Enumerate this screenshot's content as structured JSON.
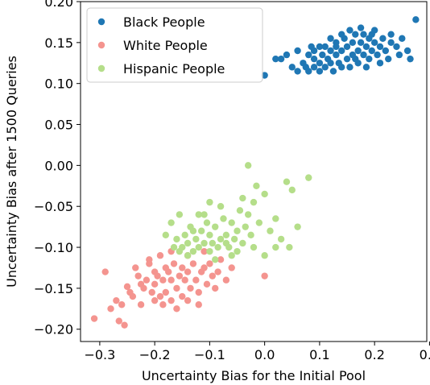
{
  "chart_data": {
    "type": "scatter",
    "xlabel": "Uncertainty Bias for the Initial Pool",
    "ylabel": "Uncertainty Bias after 1500 Queries",
    "xlim": [
      -0.335,
      0.295
    ],
    "ylim": [
      -0.215,
      0.2
    ],
    "xticks": [
      -0.3,
      -0.2,
      -0.1,
      0.0,
      0.1,
      0.2,
      0.3
    ],
    "xtick_labels": [
      "−0.3",
      "−0.2",
      "−0.1",
      "0.0",
      "0.1",
      "0.2",
      "0.3"
    ],
    "yticks": [
      -0.2,
      -0.15,
      -0.1,
      -0.05,
      0.0,
      0.05,
      0.1,
      0.15,
      0.2
    ],
    "ytick_labels": [
      "−0.20",
      "−0.15",
      "−0.10",
      "−0.05",
      "0.00",
      "0.05",
      "0.10",
      "0.15",
      "0.20"
    ],
    "grid": false,
    "legend_position": "top-left",
    "series": [
      {
        "name": "Black People",
        "color": "#1f77b4",
        "points": [
          [
            0.0,
            0.11
          ],
          [
            0.02,
            0.13
          ],
          [
            0.03,
            0.13
          ],
          [
            0.04,
            0.135
          ],
          [
            0.05,
            0.12
          ],
          [
            0.06,
            0.115
          ],
          [
            0.06,
            0.14
          ],
          [
            0.07,
            0.125
          ],
          [
            0.075,
            0.12
          ],
          [
            0.08,
            0.115
          ],
          [
            0.08,
            0.135
          ],
          [
            0.085,
            0.145
          ],
          [
            0.09,
            0.12
          ],
          [
            0.09,
            0.13
          ],
          [
            0.1,
            0.125
          ],
          [
            0.1,
            0.115
          ],
          [
            0.105,
            0.135
          ],
          [
            0.11,
            0.145
          ],
          [
            0.11,
            0.12
          ],
          [
            0.115,
            0.13
          ],
          [
            0.12,
            0.14
          ],
          [
            0.12,
            0.125
          ],
          [
            0.125,
            0.115
          ],
          [
            0.13,
            0.15
          ],
          [
            0.13,
            0.135
          ],
          [
            0.135,
            0.125
          ],
          [
            0.14,
            0.14
          ],
          [
            0.14,
            0.12
          ],
          [
            0.145,
            0.155
          ],
          [
            0.15,
            0.13
          ],
          [
            0.15,
            0.145
          ],
          [
            0.155,
            0.12
          ],
          [
            0.16,
            0.15
          ],
          [
            0.16,
            0.135
          ],
          [
            0.165,
            0.16
          ],
          [
            0.17,
            0.14
          ],
          [
            0.17,
            0.125
          ],
          [
            0.175,
            0.15
          ],
          [
            0.18,
            0.135
          ],
          [
            0.18,
            0.16
          ],
          [
            0.185,
            0.145
          ],
          [
            0.19,
            0.155
          ],
          [
            0.19,
            0.13
          ],
          [
            0.195,
            0.14
          ],
          [
            0.2,
            0.15
          ],
          [
            0.2,
            0.165
          ],
          [
            0.205,
            0.135
          ],
          [
            0.21,
            0.145
          ],
          [
            0.215,
            0.155
          ],
          [
            0.22,
            0.14
          ],
          [
            0.225,
            0.13
          ],
          [
            0.23,
            0.15
          ],
          [
            0.24,
            0.145
          ],
          [
            0.25,
            0.155
          ],
          [
            0.26,
            0.14
          ],
          [
            0.265,
            0.13
          ],
          [
            0.275,
            0.178
          ],
          [
            0.14,
            0.16
          ],
          [
            0.155,
            0.165
          ],
          [
            0.175,
            0.168
          ],
          [
            0.12,
            0.155
          ],
          [
            0.1,
            0.145
          ],
          [
            0.185,
            0.12
          ],
          [
            0.21,
            0.125
          ],
          [
            0.23,
            0.16
          ],
          [
            0.09,
            0.14
          ],
          [
            0.13,
            0.145
          ],
          [
            0.165,
            0.13
          ],
          [
            0.195,
            0.16
          ],
          [
            0.245,
            0.135
          ]
        ]
      },
      {
        "name": "White People",
        "color": "#f4948f",
        "points": [
          [
            -0.31,
            -0.187
          ],
          [
            -0.29,
            -0.13
          ],
          [
            -0.28,
            -0.175
          ],
          [
            -0.27,
            -0.165
          ],
          [
            -0.265,
            -0.19
          ],
          [
            -0.26,
            -0.17
          ],
          [
            -0.255,
            -0.195
          ],
          [
            -0.25,
            -0.148
          ],
          [
            -0.245,
            -0.155
          ],
          [
            -0.24,
            -0.16
          ],
          [
            -0.235,
            -0.125
          ],
          [
            -0.23,
            -0.135
          ],
          [
            -0.225,
            -0.145
          ],
          [
            -0.22,
            -0.15
          ],
          [
            -0.215,
            -0.14
          ],
          [
            -0.21,
            -0.12
          ],
          [
            -0.205,
            -0.155
          ],
          [
            -0.2,
            -0.13
          ],
          [
            -0.2,
            -0.145
          ],
          [
            -0.195,
            -0.135
          ],
          [
            -0.19,
            -0.11
          ],
          [
            -0.19,
            -0.16
          ],
          [
            -0.185,
            -0.14
          ],
          [
            -0.18,
            -0.125
          ],
          [
            -0.18,
            -0.155
          ],
          [
            -0.175,
            -0.13
          ],
          [
            -0.17,
            -0.165
          ],
          [
            -0.17,
            -0.14
          ],
          [
            -0.165,
            -0.12
          ],
          [
            -0.16,
            -0.15
          ],
          [
            -0.155,
            -0.135
          ],
          [
            -0.15,
            -0.125
          ],
          [
            -0.15,
            -0.16
          ],
          [
            -0.145,
            -0.14
          ],
          [
            -0.14,
            -0.13
          ],
          [
            -0.135,
            -0.15
          ],
          [
            -0.13,
            -0.12
          ],
          [
            -0.125,
            -0.14
          ],
          [
            -0.12,
            -0.155
          ],
          [
            -0.115,
            -0.13
          ],
          [
            -0.11,
            -0.125
          ],
          [
            -0.105,
            -0.145
          ],
          [
            -0.1,
            -0.12
          ],
          [
            -0.095,
            -0.135
          ],
          [
            -0.09,
            -0.15
          ],
          [
            -0.085,
            -0.13
          ],
          [
            -0.08,
            -0.115
          ],
          [
            -0.07,
            -0.14
          ],
          [
            -0.06,
            -0.125
          ],
          [
            0.0,
            -0.135
          ],
          [
            -0.2,
            -0.165
          ],
          [
            -0.185,
            -0.17
          ],
          [
            -0.16,
            -0.175
          ],
          [
            -0.14,
            -0.165
          ],
          [
            -0.12,
            -0.17
          ],
          [
            -0.21,
            -0.115
          ],
          [
            -0.17,
            -0.105
          ],
          [
            -0.14,
            -0.11
          ],
          [
            -0.11,
            -0.105
          ],
          [
            -0.225,
            -0.17
          ]
        ]
      },
      {
        "name": "Hispanic People",
        "color": "#b5de8a",
        "points": [
          [
            -0.18,
            -0.085
          ],
          [
            -0.17,
            -0.07
          ],
          [
            -0.165,
            -0.1
          ],
          [
            -0.16,
            -0.09
          ],
          [
            -0.155,
            -0.06
          ],
          [
            -0.15,
            -0.1
          ],
          [
            -0.145,
            -0.085
          ],
          [
            -0.14,
            -0.095
          ],
          [
            -0.135,
            -0.075
          ],
          [
            -0.13,
            -0.105
          ],
          [
            -0.125,
            -0.09
          ],
          [
            -0.12,
            -0.1
          ],
          [
            -0.115,
            -0.08
          ],
          [
            -0.11,
            -0.095
          ],
          [
            -0.105,
            -0.07
          ],
          [
            -0.1,
            -0.105
          ],
          [
            -0.1,
            -0.085
          ],
          [
            -0.095,
            -0.095
          ],
          [
            -0.09,
            -0.075
          ],
          [
            -0.085,
            -0.1
          ],
          [
            -0.08,
            -0.09
          ],
          [
            -0.075,
            -0.065
          ],
          [
            -0.07,
            -0.085
          ],
          [
            -0.065,
            -0.1
          ],
          [
            -0.06,
            -0.07
          ],
          [
            -0.055,
            -0.09
          ],
          [
            -0.05,
            -0.08
          ],
          [
            -0.045,
            -0.055
          ],
          [
            -0.04,
            -0.095
          ],
          [
            -0.035,
            -0.075
          ],
          [
            -0.03,
            -0.06
          ],
          [
            -0.025,
            -0.085
          ],
          [
            -0.02,
            -0.1
          ],
          [
            -0.01,
            -0.07
          ],
          [
            0.0,
            -0.035
          ],
          [
            0.01,
            -0.08
          ],
          [
            0.02,
            -0.065
          ],
          [
            0.03,
            -0.09
          ],
          [
            0.04,
            -0.02
          ],
          [
            0.045,
            -0.1
          ],
          [
            0.05,
            -0.03
          ],
          [
            0.06,
            -0.075
          ],
          [
            0.08,
            -0.015
          ],
          [
            -0.03,
            0.0
          ],
          [
            -0.1,
            -0.045
          ],
          [
            -0.12,
            -0.06
          ],
          [
            -0.14,
            -0.11
          ],
          [
            -0.09,
            -0.115
          ],
          [
            -0.06,
            -0.11
          ],
          [
            -0.02,
            -0.045
          ],
          [
            0.02,
            -0.1
          ],
          [
            -0.05,
            -0.105
          ],
          [
            -0.11,
            -0.06
          ],
          [
            -0.08,
            -0.05
          ],
          [
            -0.04,
            -0.04
          ],
          [
            0.0,
            -0.11
          ],
          [
            -0.015,
            -0.025
          ],
          [
            -0.155,
            -0.105
          ],
          [
            -0.13,
            -0.08
          ],
          [
            -0.07,
            -0.095
          ]
        ]
      }
    ]
  }
}
